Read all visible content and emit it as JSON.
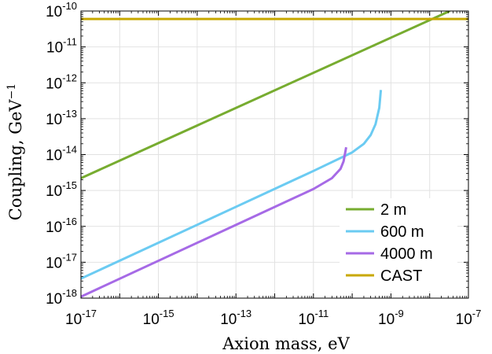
{
  "chart_data": {
    "type": "line",
    "xlabel": "Axion mass, eV",
    "ylabel": "Coupling, GeV",
    "ylabel_exponent": "−1",
    "x_scale": "log",
    "y_scale": "log",
    "xlim": [
      1e-17,
      1e-07
    ],
    "ylim": [
      1e-18,
      1e-10
    ],
    "grid": true,
    "legend_position": "bottom-right",
    "x_ticks": [
      {
        "base": "10",
        "exp": "-17"
      },
      {
        "base": "10",
        "exp": "-15"
      },
      {
        "base": "10",
        "exp": "-13"
      },
      {
        "base": "10",
        "exp": "-11"
      },
      {
        "base": "10",
        "exp": "-9"
      },
      {
        "base": "10",
        "exp": "-7"
      }
    ],
    "y_ticks": [
      {
        "base": "10",
        "exp": "-18"
      },
      {
        "base": "10",
        "exp": "-17"
      },
      {
        "base": "10",
        "exp": "-16"
      },
      {
        "base": "10",
        "exp": "-15"
      },
      {
        "base": "10",
        "exp": "-14"
      },
      {
        "base": "10",
        "exp": "-13"
      },
      {
        "base": "10",
        "exp": "-12"
      },
      {
        "base": "10",
        "exp": "-11"
      },
      {
        "base": "10",
        "exp": "-10"
      }
    ],
    "series": [
      {
        "name": "2 m",
        "color": "#77ac30",
        "points": [
          [
            1e-17,
            2.2e-15
          ],
          [
            3.3e-08,
            1e-10
          ]
        ]
      },
      {
        "name": "600 m",
        "color": "#6bcbf2",
        "points": [
          [
            1e-17,
            3.5e-18
          ],
          [
            1e-13,
            3.5e-16
          ],
          [
            1e-11,
            3.5e-15
          ],
          [
            1e-10,
            1.15e-14
          ],
          [
            2e-10,
            2e-14
          ],
          [
            3e-10,
            3.5e-14
          ],
          [
            4e-10,
            7e-14
          ],
          [
            5e-10,
            2e-13
          ],
          [
            5.5e-10,
            6.3e-13
          ]
        ]
      },
      {
        "name": "4000 m",
        "color": "#a66ae6",
        "points": [
          [
            1e-17,
            1.1e-18
          ],
          [
            1e-13,
            1.1e-16
          ],
          [
            1e-11,
            1.1e-15
          ],
          [
            3e-11,
            2.2e-15
          ],
          [
            5e-11,
            4e-15
          ],
          [
            6e-11,
            6.5e-15
          ],
          [
            7e-11,
            1.6e-14
          ]
        ]
      },
      {
        "name": "CAST",
        "color": "#c8a800",
        "points": [
          [
            1e-17,
            6e-11
          ],
          [
            1e-07,
            6e-11
          ]
        ]
      }
    ]
  }
}
